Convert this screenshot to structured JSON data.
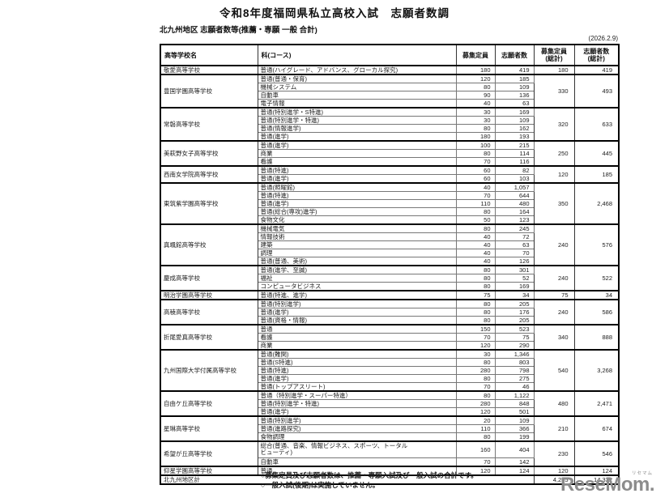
{
  "page": {
    "title": "令和8年度福岡県私立高校入試　志願者数調",
    "subtitle": "北九州地区 志願者数等(推薦・専願 一般 合計)",
    "date_note": "(2026.2.9)",
    "footnotes": [
      "○募集定員及び志願者数は、推薦・専願入試及び一般入試の合計です。",
      "○一般入試(後期)は実施していません。"
    ],
    "logo_text": "ReseMom.",
    "logo_ruby": "リセマム",
    "colors": {
      "text": "#1c1c1c",
      "border": "#000000",
      "logo_gray": "#8c8c8c"
    }
  },
  "table": {
    "headers": [
      "高等学校名",
      "科(コース)",
      "募集定員",
      "志願者数",
      "募集定員\n(総計)",
      "志願者数\n(総計)"
    ],
    "schools": [
      {
        "name": "敬愛高等学校",
        "total_capacity": "180",
        "total_applicants": "419",
        "rows": [
          {
            "course": "普通(ハイグレード、アドバンス、グローカル探究)",
            "capacity": "180",
            "applicants": "419"
          }
        ]
      },
      {
        "name": "豊国学園高等学校",
        "total_capacity": "330",
        "total_applicants": "493",
        "rows": [
          {
            "course": "普通(普通・保育)",
            "capacity": "120",
            "applicants": "185"
          },
          {
            "course": "機械システム",
            "capacity": "80",
            "applicants": "109"
          },
          {
            "course": "自動車",
            "capacity": "90",
            "applicants": "136"
          },
          {
            "course": "電子情報",
            "capacity": "40",
            "applicants": "63"
          }
        ]
      },
      {
        "name": "常磐高等学校",
        "total_capacity": "320",
        "total_applicants": "633",
        "rows": [
          {
            "course": "普通(特別進学・S特進)",
            "capacity": "30",
            "applicants": "169"
          },
          {
            "course": "普通(特別進学・特進)",
            "capacity": "30",
            "applicants": "109"
          },
          {
            "course": "普通(情報進学)",
            "capacity": "80",
            "applicants": "162"
          },
          {
            "course": "普通(進学)",
            "capacity": "180",
            "applicants": "193"
          }
        ]
      },
      {
        "name": "美萩野女子高等学校",
        "total_capacity": "250",
        "total_applicants": "445",
        "rows": [
          {
            "course": "普通(進学)",
            "capacity": "100",
            "applicants": "215"
          },
          {
            "course": "商業",
            "capacity": "80",
            "applicants": "114"
          },
          {
            "course": "看護",
            "capacity": "70",
            "applicants": "116"
          }
        ]
      },
      {
        "name": "西南女学院高等学校",
        "total_capacity": "120",
        "total_applicants": "185",
        "rows": [
          {
            "course": "普通(特進)",
            "capacity": "60",
            "applicants": "82"
          },
          {
            "course": "普通(進学)",
            "capacity": "60",
            "applicants": "103"
          }
        ]
      },
      {
        "name": "東筑紫学園高等学校",
        "total_capacity": "350",
        "total_applicants": "2,468",
        "rows": [
          {
            "course": "普通(照曜館)",
            "capacity": "40",
            "applicants": "1,057"
          },
          {
            "course": "普通(特進)",
            "capacity": "70",
            "applicants": "644"
          },
          {
            "course": "普通(進学)",
            "capacity": "110",
            "applicants": "480"
          },
          {
            "course": "普通(総合(専攻)進学)",
            "capacity": "80",
            "applicants": "164"
          },
          {
            "course": "食物文化",
            "capacity": "50",
            "applicants": "123"
          }
        ]
      },
      {
        "name": "真颯館高等学校",
        "total_capacity": "240",
        "total_applicants": "576",
        "rows": [
          {
            "course": "機械電気",
            "capacity": "80",
            "applicants": "245"
          },
          {
            "course": "情報技術",
            "capacity": "40",
            "applicants": "72"
          },
          {
            "course": "建築",
            "capacity": "40",
            "applicants": "63"
          },
          {
            "course": "調理",
            "capacity": "40",
            "applicants": "70"
          },
          {
            "course": "普通(普通、美術)",
            "capacity": "40",
            "applicants": "126"
          }
        ]
      },
      {
        "name": "慶成高等学校",
        "total_capacity": "240",
        "total_applicants": "522",
        "rows": [
          {
            "course": "普通(進学、至誠)",
            "capacity": "80",
            "applicants": "301"
          },
          {
            "course": "福祉",
            "capacity": "80",
            "applicants": "52"
          },
          {
            "course": "コンピュータビジネス",
            "capacity": "80",
            "applicants": "169"
          }
        ]
      },
      {
        "name": "明治学園高等学校",
        "total_capacity": "75",
        "total_applicants": "34",
        "rows": [
          {
            "course": "普通(特進、進学)",
            "capacity": "75",
            "applicants": "34"
          }
        ]
      },
      {
        "name": "高稜高等学校",
        "total_capacity": "240",
        "total_applicants": "586",
        "rows": [
          {
            "course": "普通(特別進学)",
            "capacity": "80",
            "applicants": "205"
          },
          {
            "course": "普通(進学)",
            "capacity": "80",
            "applicants": "176"
          },
          {
            "course": "普通(資格・情報)",
            "capacity": "80",
            "applicants": "205"
          }
        ]
      },
      {
        "name": "折尾愛真高等学校",
        "total_capacity": "340",
        "total_applicants": "888",
        "rows": [
          {
            "course": "普通",
            "capacity": "150",
            "applicants": "523"
          },
          {
            "course": "看護",
            "capacity": "70",
            "applicants": "75"
          },
          {
            "course": "商業",
            "capacity": "120",
            "applicants": "290"
          }
        ]
      },
      {
        "name": "九州国際大学付属高等学校",
        "total_capacity": "540",
        "total_applicants": "3,268",
        "rows": [
          {
            "course": "普通(難関)",
            "capacity": "30",
            "applicants": "1,346"
          },
          {
            "course": "普通(S特進)",
            "capacity": "80",
            "applicants": "803"
          },
          {
            "course": "普通(特進)",
            "capacity": "280",
            "applicants": "798"
          },
          {
            "course": "普通(進学)",
            "capacity": "80",
            "applicants": "275"
          },
          {
            "course": "普通(トップアスリート)",
            "capacity": "70",
            "applicants": "46"
          }
        ]
      },
      {
        "name": "自由ケ丘高等学校",
        "total_capacity": "480",
        "total_applicants": "2,471",
        "rows": [
          {
            "course": "普通（特別進学・スーパー特進）",
            "capacity": "80",
            "applicants": "1,122"
          },
          {
            "course": "普通(特別進学・特進)",
            "capacity": "280",
            "applicants": "848"
          },
          {
            "course": "普通(進学)",
            "capacity": "120",
            "applicants": "501"
          }
        ]
      },
      {
        "name": "星琳高等学校",
        "total_capacity": "210",
        "total_applicants": "674",
        "rows": [
          {
            "course": "普通(特別進学)",
            "capacity": "20",
            "applicants": "109"
          },
          {
            "course": "普通(進路探究)",
            "capacity": "110",
            "applicants": "366"
          },
          {
            "course": "食物調理",
            "capacity": "80",
            "applicants": "199"
          }
        ]
      },
      {
        "name": "希望が丘高等学校",
        "total_capacity": "230",
        "total_applicants": "546",
        "rows": [
          {
            "course": "総合(普通、音楽、情報ビジネス、スポーツ、トータルビューティ)",
            "capacity": "160",
            "applicants": "404",
            "wrap": true
          },
          {
            "course": "自動車",
            "capacity": "70",
            "applicants": "142"
          }
        ]
      },
      {
        "name": "仰星学園高等学校",
        "total_capacity": "120",
        "total_applicants": "124",
        "rows": [
          {
            "course": "普通",
            "capacity": "120",
            "applicants": "124"
          }
        ]
      }
    ],
    "district_total": {
      "label": "北九州地区計",
      "total_capacity": "4,265",
      "total_applicants": "14,332"
    }
  }
}
